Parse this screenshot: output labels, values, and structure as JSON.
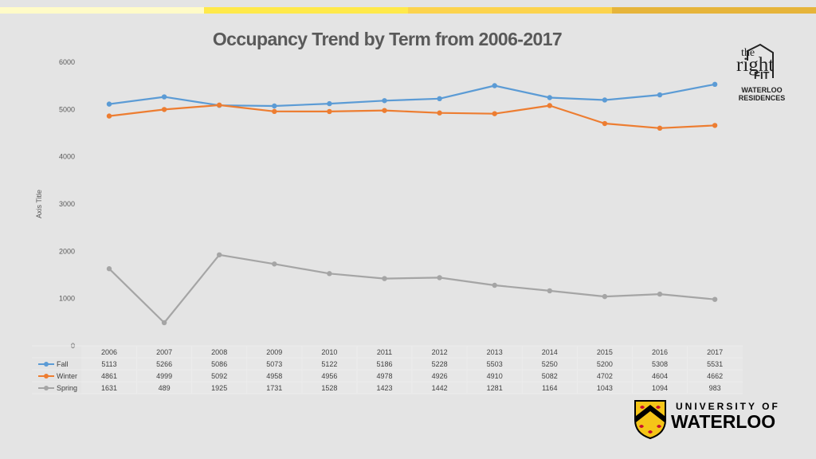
{
  "header": {
    "bar_colors": [
      "#fffbc8",
      "#ffe94a",
      "#fcd34d",
      "#e6b43a",
      "#2a2a2a"
    ]
  },
  "logos": {
    "right_fit_the": "the",
    "right_fit_right": "right",
    "right_fit_fit": "FIT",
    "right_fit_line1": "WATERLOO",
    "right_fit_line2": "RESIDENCES",
    "uw_line1": "UNIVERSITY OF",
    "uw_line2": "WATERLOO"
  },
  "chart_data": {
    "type": "line",
    "title": "Occupancy Trend by Term from 2006-2017",
    "xlabel": "",
    "ylabel": "Axis Title",
    "ylim": [
      0,
      6000
    ],
    "yticks": [
      0,
      1000,
      2000,
      3000,
      4000,
      5000,
      6000
    ],
    "grid": false,
    "legend": "data-table-below",
    "categories": [
      "2006",
      "2007",
      "2008",
      "2009",
      "2010",
      "2011",
      "2012",
      "2013",
      "2014",
      "2015",
      "2016",
      "2017"
    ],
    "series": [
      {
        "name": "Fall",
        "color": "#5b9bd5",
        "values": [
          5113,
          5266,
          5086,
          5073,
          5122,
          5186,
          5228,
          5503,
          5250,
          5200,
          5308,
          5531
        ]
      },
      {
        "name": "Winter",
        "color": "#ed7d31",
        "values": [
          4861,
          4999,
          5092,
          4958,
          4956,
          4978,
          4926,
          4910,
          5082,
          4702,
          4604,
          4662
        ]
      },
      {
        "name": "Spring",
        "color": "#a5a5a5",
        "values": [
          1631,
          489,
          1925,
          1731,
          1528,
          1423,
          1442,
          1281,
          1164,
          1043,
          1094,
          983
        ]
      }
    ]
  }
}
